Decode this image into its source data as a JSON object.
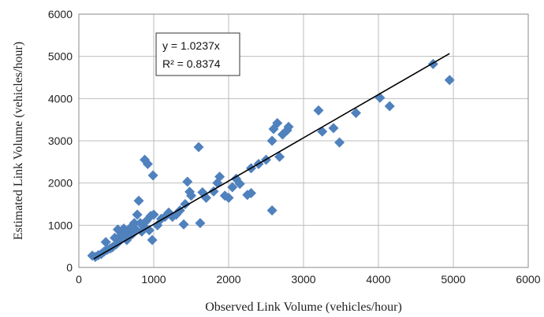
{
  "chart_data": {
    "type": "scatter",
    "xlabel": "Observed Link Volume (vehicles/hour)",
    "ylabel": "Estimated Link Volume (vehicles/hour)",
    "xlim": [
      0,
      6000
    ],
    "ylim": [
      0,
      6000
    ],
    "xticks": [
      "0",
      "1000",
      "2000",
      "3000",
      "4000",
      "5000",
      "6000"
    ],
    "yticks": [
      "0",
      "1000",
      "2000",
      "3000",
      "4000",
      "5000",
      "6000"
    ],
    "grid": true,
    "marker_color": "#4F81BD",
    "trendline": {
      "slope": 1.0237,
      "x_range": [
        200,
        4950
      ],
      "equation": "y = 1.0237x",
      "r_squared": "R² = 0.8374"
    },
    "points": [
      [
        180,
        280
      ],
      [
        220,
        250
      ],
      [
        260,
        290
      ],
      [
        300,
        320
      ],
      [
        340,
        380
      ],
      [
        360,
        600
      ],
      [
        380,
        420
      ],
      [
        420,
        450
      ],
      [
        450,
        480
      ],
      [
        480,
        700
      ],
      [
        500,
        550
      ],
      [
        520,
        900
      ],
      [
        540,
        620
      ],
      [
        560,
        760
      ],
      [
        580,
        700
      ],
      [
        600,
        920
      ],
      [
        620,
        830
      ],
      [
        640,
        650
      ],
      [
        660,
        890
      ],
      [
        680,
        740
      ],
      [
        700,
        960
      ],
      [
        720,
        800
      ],
      [
        740,
        1050
      ],
      [
        760,
        900
      ],
      [
        780,
        1250
      ],
      [
        800,
        1580
      ],
      [
        820,
        1050
      ],
      [
        840,
        850
      ],
      [
        860,
        980
      ],
      [
        880,
        2550
      ],
      [
        900,
        1100
      ],
      [
        920,
        2450
      ],
      [
        940,
        880
      ],
      [
        960,
        1220
      ],
      [
        980,
        650
      ],
      [
        990,
        2180
      ],
      [
        1000,
        1250
      ],
      [
        1050,
        1000
      ],
      [
        1100,
        1150
      ],
      [
        1150,
        1200
      ],
      [
        1200,
        1300
      ],
      [
        1250,
        1200
      ],
      [
        1300,
        1250
      ],
      [
        1350,
        1350
      ],
      [
        1400,
        1020
      ],
      [
        1420,
        1500
      ],
      [
        1450,
        2030
      ],
      [
        1480,
        1790
      ],
      [
        1500,
        1700
      ],
      [
        1600,
        2850
      ],
      [
        1620,
        1050
      ],
      [
        1650,
        1780
      ],
      [
        1700,
        1650
      ],
      [
        1800,
        1800
      ],
      [
        1850,
        2000
      ],
      [
        1880,
        2150
      ],
      [
        1950,
        1700
      ],
      [
        2000,
        1650
      ],
      [
        2050,
        1900
      ],
      [
        2100,
        2100
      ],
      [
        2150,
        1980
      ],
      [
        2250,
        1720
      ],
      [
        2300,
        1760
      ],
      [
        2300,
        2350
      ],
      [
        2400,
        2450
      ],
      [
        2500,
        2550
      ],
      [
        2580,
        1350
      ],
      [
        2580,
        3000
      ],
      [
        2600,
        3280
      ],
      [
        2650,
        3420
      ],
      [
        2680,
        2620
      ],
      [
        2720,
        3150
      ],
      [
        2780,
        3250
      ],
      [
        2800,
        3330
      ],
      [
        3200,
        3720
      ],
      [
        3250,
        3220
      ],
      [
        3400,
        3300
      ],
      [
        3480,
        2960
      ],
      [
        3700,
        3660
      ],
      [
        4020,
        4020
      ],
      [
        4150,
        3820
      ],
      [
        4730,
        4820
      ],
      [
        4950,
        4440
      ]
    ]
  }
}
